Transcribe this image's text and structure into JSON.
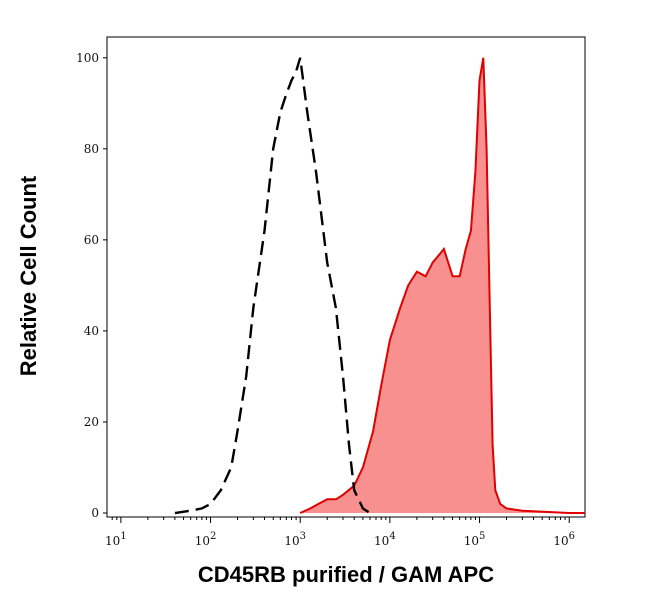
{
  "chart_data": {
    "type": "area",
    "xlabel": "CD45RB purified / GAM APC",
    "ylabel": "Relative Cell Count",
    "xscale": "log",
    "xlim": [
      7,
      1500000
    ],
    "ylim": [
      0,
      105
    ],
    "xticks": [
      {
        "value": 10,
        "base": "10",
        "exp": "1"
      },
      {
        "value": 100,
        "base": "10",
        "exp": "2"
      },
      {
        "value": 1000,
        "base": "10",
        "exp": "3"
      },
      {
        "value": 10000,
        "base": "10",
        "exp": "4"
      },
      {
        "value": 100000,
        "base": "10",
        "exp": "5"
      },
      {
        "value": 1000000,
        "base": "10",
        "exp": "6"
      }
    ],
    "yticks": [
      {
        "value": 0,
        "label": "0"
      },
      {
        "value": 20,
        "label": "20"
      },
      {
        "value": 40,
        "label": "40"
      },
      {
        "value": 60,
        "label": "60"
      },
      {
        "value": 80,
        "label": "80"
      },
      {
        "value": 100,
        "label": "100"
      }
    ],
    "grid": false,
    "series": [
      {
        "style": "dashed",
        "fill": false,
        "color": "#000000",
        "x": [
          40,
          60,
          80,
          100,
          130,
          170,
          200,
          250,
          300,
          400,
          500,
          600,
          700,
          800,
          900,
          1000,
          1200,
          1500,
          2000,
          2500,
          3000,
          3500,
          4000,
          5000,
          6000
        ],
        "y": [
          0,
          0.5,
          1,
          2,
          5,
          10,
          18,
          30,
          45,
          62,
          80,
          88,
          92,
          95,
          97,
          100,
          88,
          75,
          55,
          45,
          30,
          15,
          5,
          1,
          0
        ]
      },
      {
        "style": "solid",
        "fill": true,
        "color": "#e00000",
        "fillColor": "#f89090",
        "x": [
          1000,
          1300,
          1600,
          2000,
          2500,
          3000,
          4000,
          5000,
          6500,
          8000,
          10000,
          13000,
          16000,
          20000,
          25000,
          30000,
          40000,
          50000,
          60000,
          70000,
          80000,
          90000,
          100000,
          110000,
          120000,
          130000,
          140000,
          150000,
          170000,
          200000,
          300000,
          1000000,
          1500000
        ],
        "y": [
          0,
          1,
          2,
          3,
          3,
          4,
          6,
          10,
          18,
          28,
          38,
          45,
          50,
          53,
          52,
          55,
          58,
          52,
          52,
          58,
          62,
          75,
          95,
          100,
          80,
          45,
          15,
          5,
          2,
          1,
          0.5,
          0,
          0
        ]
      }
    ]
  }
}
